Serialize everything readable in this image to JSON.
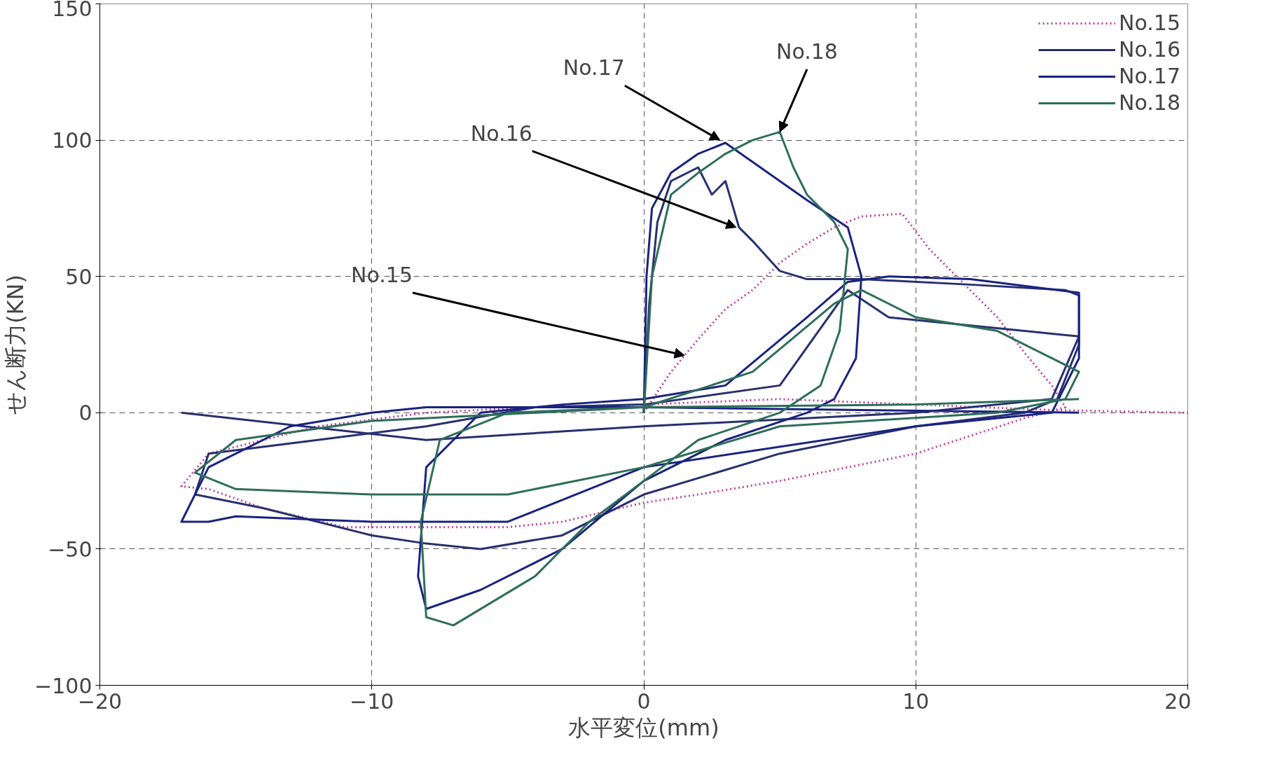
{
  "chart_data": {
    "type": "line",
    "xlabel": "水平変位(mm)",
    "ylabel": "せん断力(KN)",
    "xlim": [
      -20,
      20
    ],
    "xticks": [
      -20,
      -10,
      0,
      10,
      20
    ],
    "ylim": [
      -100,
      150
    ],
    "yticks": [
      -100,
      -50,
      0,
      50,
      100,
      150
    ],
    "grid": true,
    "legend": "top right",
    "marker": "none",
    "annotations": [
      {
        "text": "No.17",
        "x": 2.8,
        "y": 100
      },
      {
        "text": "No.18",
        "x": 5.0,
        "y": 103
      },
      {
        "text": "No.16",
        "x": 3.4,
        "y": 68
      },
      {
        "text": "No.15",
        "x": 1.5,
        "y": 21
      }
    ],
    "series": [
      {
        "name": "No.15",
        "color": "#c040a0",
        "line_style": "dotted",
        "x": [
          0,
          1,
          2,
          3,
          4,
          5,
          6,
          7,
          8,
          9.5,
          10.5,
          11,
          12,
          13,
          14,
          15,
          15.5,
          14,
          10,
          5,
          2,
          0,
          -3,
          -5,
          -8,
          -11,
          -14,
          -16,
          -17,
          -16,
          -12,
          -8,
          -4,
          0,
          5,
          10,
          15,
          20
        ],
        "values": [
          0,
          15,
          27,
          38,
          45,
          55,
          62,
          68,
          72,
          73,
          60,
          55,
          45,
          35,
          22,
          10,
          2,
          -2,
          -15,
          -25,
          -30,
          -33,
          -40,
          -42,
          -42,
          -42,
          -35,
          -28,
          -27,
          -15,
          -5,
          0,
          2,
          3,
          5,
          3,
          1,
          0
        ]
      },
      {
        "name": "No.16",
        "color": "#283070",
        "line_style": "solid",
        "x": [
          0,
          0.2,
          0.5,
          1,
          2,
          2.5,
          3,
          3.5,
          4,
          5,
          6,
          8,
          12,
          15.5,
          16,
          16,
          15.2,
          14,
          10,
          5,
          0,
          -3,
          -6,
          -8,
          -10,
          -14,
          -16.5,
          -16,
          -12,
          -8,
          -4,
          0,
          5,
          7.5,
          9,
          14,
          16,
          15,
          10,
          0,
          -8,
          -17
        ],
        "values": [
          0,
          40,
          70,
          85,
          90,
          80,
          85,
          68,
          63,
          52,
          49,
          49,
          47,
          45,
          43,
          25,
          5,
          0,
          -5,
          -15,
          -30,
          -45,
          -50,
          -48,
          -45,
          -35,
          -30,
          -15,
          -10,
          -5,
          2,
          3,
          10,
          45,
          35,
          30,
          28,
          5,
          0,
          -5,
          -10,
          0
        ]
      },
      {
        "name": "No.17",
        "color": "#1a2380",
        "line_style": "solid",
        "x": [
          0,
          0.1,
          0.3,
          1,
          2,
          3,
          4,
          5,
          6,
          7.5,
          8,
          7.8,
          7,
          6,
          3,
          0,
          -3,
          -6,
          -8,
          -8.3,
          -8,
          -6,
          -3,
          0,
          3,
          6,
          7.5,
          9,
          12,
          16,
          16,
          15,
          10,
          0,
          -5,
          -10,
          -15,
          -16,
          -17,
          -16,
          -13,
          -10,
          -8,
          0,
          8,
          16
        ],
        "values": [
          0,
          50,
          75,
          88,
          95,
          99,
          92,
          85,
          78,
          68,
          50,
          20,
          5,
          0,
          -10,
          -25,
          -50,
          -65,
          -72,
          -60,
          -20,
          0,
          3,
          5,
          10,
          35,
          48,
          50,
          49,
          44,
          20,
          0,
          -5,
          -20,
          -40,
          -40,
          -38,
          -40,
          -40,
          -20,
          -5,
          0,
          2,
          2,
          1,
          0
        ]
      },
      {
        "name": "No.18",
        "color": "#2e6e5a",
        "line_style": "solid",
        "x": [
          0,
          0.3,
          1,
          2,
          3,
          4,
          5,
          5.5,
          6,
          7,
          7.5,
          7.2,
          6.5,
          5,
          2,
          0,
          -2,
          -4,
          -7,
          -8,
          -8.2,
          -7.5,
          -5,
          0,
          4,
          7,
          8,
          10,
          13,
          15,
          16,
          15.5,
          13,
          5,
          0,
          -5,
          -10,
          -15,
          -16.5,
          -15,
          -10,
          0,
          10,
          16
        ],
        "values": [
          0,
          50,
          80,
          88,
          95,
          100,
          103,
          90,
          80,
          70,
          60,
          30,
          10,
          0,
          -10,
          -25,
          -40,
          -60,
          -78,
          -75,
          -40,
          -10,
          0,
          2,
          15,
          40,
          45,
          35,
          30,
          20,
          15,
          5,
          0,
          -5,
          -20,
          -30,
          -30,
          -28,
          -22,
          -10,
          -3,
          2,
          3,
          5
        ]
      }
    ]
  }
}
